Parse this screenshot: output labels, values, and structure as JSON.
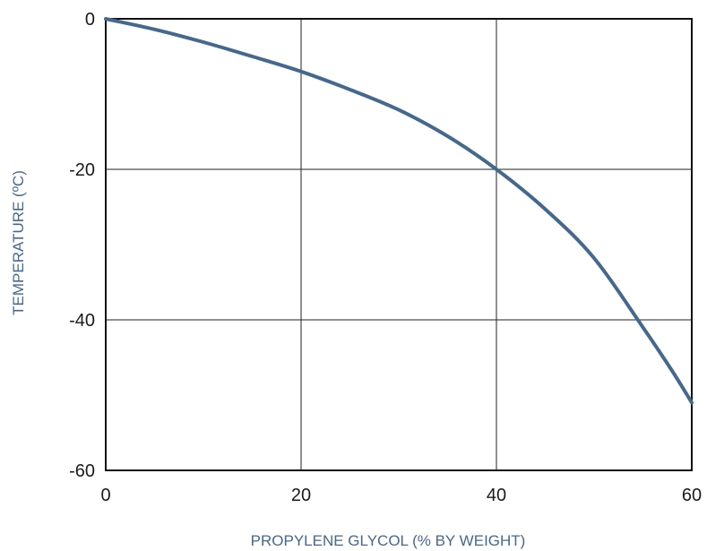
{
  "chart_data": {
    "type": "line",
    "title": "",
    "xlabel": "PROPYLENE GLYCOL (% BY WEIGHT)",
    "ylabel": "TEMPERATURE (ºC)",
    "xlim": [
      0,
      60
    ],
    "ylim": [
      -60,
      0
    ],
    "x_ticks": [
      "0",
      "20",
      "40",
      "60"
    ],
    "y_ticks": [
      "0",
      "-20",
      "-40",
      "-60"
    ],
    "x_tick_values": [
      0,
      20,
      40,
      60
    ],
    "y_tick_values": [
      0,
      -20,
      -40,
      -60
    ],
    "grid": true,
    "colors": {
      "series": "#44698f",
      "axis_title": "#44698f",
      "axes": "#111111"
    },
    "series": [
      {
        "x": [
          0,
          5,
          10,
          15,
          20,
          25,
          30,
          35,
          40,
          45,
          50,
          55,
          58,
          60
        ],
        "y": [
          0,
          -1.4,
          -3.1,
          -5.0,
          -7.0,
          -9.4,
          -12.1,
          -15.6,
          -20.0,
          -25.3,
          -31.8,
          -41.0,
          -46.8,
          -51.0
        ]
      }
    ]
  }
}
